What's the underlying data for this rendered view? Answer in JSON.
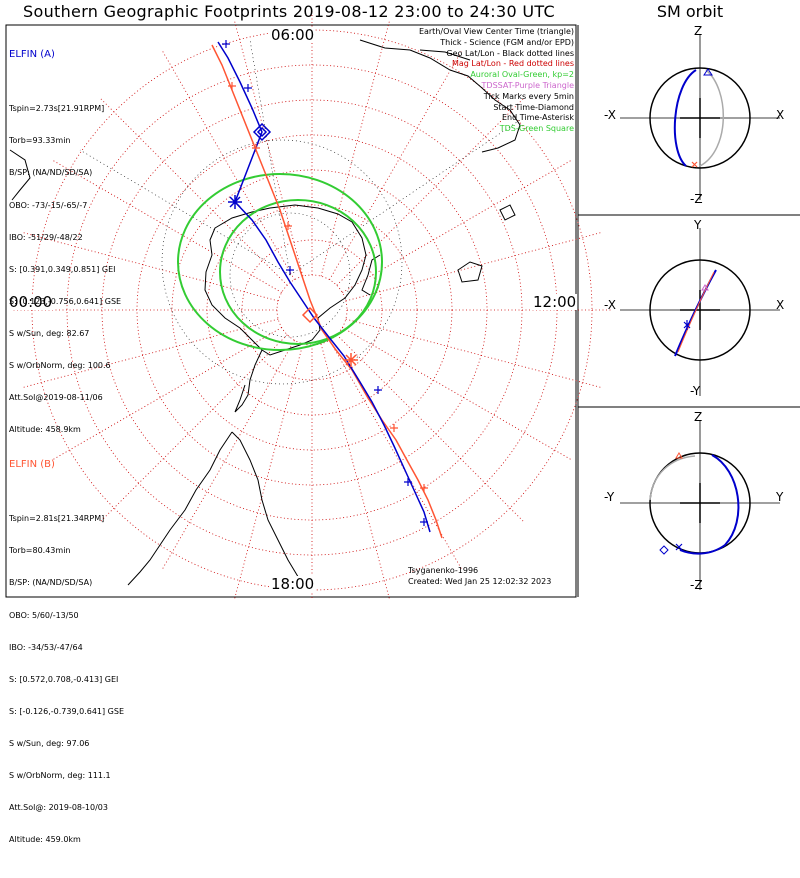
{
  "title": "Southern Geographic Footprints 2019-08-12 23:00 to 24:30 UTC",
  "clock_labels": {
    "top": "06:00",
    "left": "00:00",
    "right": "12:00",
    "bottom": "18:00"
  },
  "colors": {
    "sc_a": "#0000cc",
    "sc_b": "#ff5533",
    "geo_grid": "#cc0000",
    "oval": "#33cc33"
  },
  "elfin_a": {
    "header": "ELFIN (A)",
    "lines": [
      "Tspin=2.73s[21.91RPM]",
      "Torb=93.33min",
      "B/SP: (NA/ND/SD/SA)",
      "OBO: -73/-15/-65/-7",
      "IBO: -51/29/-48/22",
      "S: [0.391,0.349,0.851] GEI",
      "S: [0.123,-0.756,0.641] GSE",
      "S w/Sun, deg: 82.67",
      "S w/OrbNorm, deg: 100.6",
      "Att.Sol@2019-08-11/06",
      "Altitude: 458.9km"
    ]
  },
  "elfin_b": {
    "header": "ELFIN (B)",
    "lines": [
      "Tspin=2.81s[21.34RPM]",
      "Torb=80.43min",
      "B/SP: (NA/ND/SD/SA)",
      "OBO: 5/60/-13/50",
      "IBO: -34/53/-47/64",
      "S: [0.572,0.708,-0.413] GEI",
      "S: [-0.126,-0.739,0.641] GSE",
      "S w/Sun, deg: 97.06",
      "S w/OrbNorm, deg: 111.1",
      "Att.Sol@: 2019-08-10/03",
      "Altitude: 459.0km"
    ]
  },
  "legend": [
    {
      "text": "Earth/Oval View Center Time (triangle)",
      "color": "#000000"
    },
    {
      "text": "Thick - Science (FGM and/or EPD)",
      "color": "#000000"
    },
    {
      "text": "Geo Lat/Lon - Black dotted lines",
      "color": "#000000"
    },
    {
      "text": "Mag Lat/Lon - Red dotted lines",
      "color": "#cc0000"
    },
    {
      "text": "Auroral Oval-Green, kp=2",
      "color": "#33cc33"
    },
    {
      "text": "TDSSAT-Purple Triangle",
      "color": "#cc66cc"
    },
    {
      "text": "Tick Marks every 5min",
      "color": "#000000"
    },
    {
      "text": "Start Time-Diamond",
      "color": "#000000"
    },
    {
      "text": "End Time-Asterisk",
      "color": "#000000"
    },
    {
      "text": "TDS-Green Square",
      "color": "#33cc33"
    }
  ],
  "credit": {
    "line1": "Tsyganenko-1996",
    "line2": "Created: Wed Jan 25 12:02:32 2023"
  },
  "sm_orbit": {
    "title": "SM orbit",
    "panel1": {
      "top": "Z",
      "bottom": "-Z",
      "left": "-X",
      "right": "X"
    },
    "panel2": {
      "top": "Y",
      "bottom": "-Y",
      "left": "-X",
      "right": "X"
    },
    "panel3": {
      "top": "Z",
      "bottom": "-Z",
      "left": "-Y",
      "right": "Y"
    }
  }
}
